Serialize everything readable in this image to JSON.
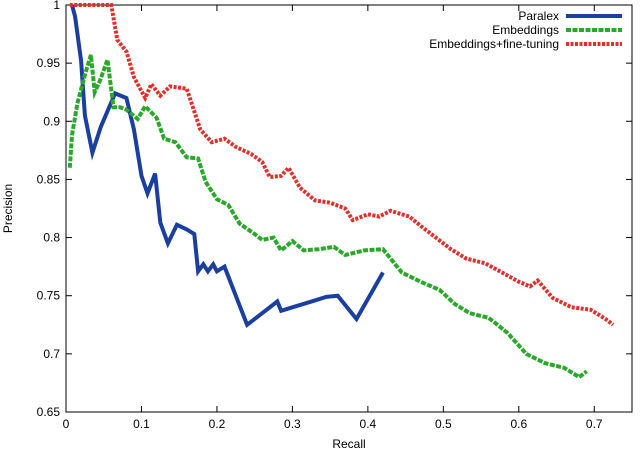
{
  "chart_data": {
    "type": "line",
    "xlabel": "Recall",
    "ylabel": "Precision",
    "xlim": [
      0,
      0.75
    ],
    "ylim": [
      0.65,
      1.0
    ],
    "xticks": [
      "0",
      "0.1",
      "0.2",
      "0.3",
      "0.4",
      "0.5",
      "0.6",
      "0.7"
    ],
    "xtick_values": [
      0,
      0.1,
      0.2,
      0.3,
      0.4,
      0.5,
      0.6,
      0.7
    ],
    "yticks": [
      "0.65",
      "0.7",
      "0.75",
      "0.8",
      "0.85",
      "0.9",
      "0.95",
      "1"
    ],
    "ytick_values": [
      0.65,
      0.7,
      0.75,
      0.8,
      0.85,
      0.9,
      0.95,
      1.0
    ],
    "legend_position": "top-right",
    "grid": false,
    "series": [
      {
        "name": "Paralex",
        "color": "#1a3f9e",
        "style": "solid",
        "points": [
          [
            0.008,
            1.0
          ],
          [
            0.012,
            0.99
          ],
          [
            0.02,
            0.952
          ],
          [
            0.025,
            0.905
          ],
          [
            0.035,
            0.873
          ],
          [
            0.046,
            0.895
          ],
          [
            0.065,
            0.924
          ],
          [
            0.08,
            0.92
          ],
          [
            0.09,
            0.893
          ],
          [
            0.1,
            0.853
          ],
          [
            0.108,
            0.838
          ],
          [
            0.118,
            0.855
          ],
          [
            0.125,
            0.813
          ],
          [
            0.135,
            0.795
          ],
          [
            0.147,
            0.811
          ],
          [
            0.16,
            0.807
          ],
          [
            0.17,
            0.803
          ],
          [
            0.175,
            0.771
          ],
          [
            0.182,
            0.777
          ],
          [
            0.188,
            0.771
          ],
          [
            0.195,
            0.777
          ],
          [
            0.2,
            0.771
          ],
          [
            0.21,
            0.775
          ],
          [
            0.24,
            0.725
          ],
          [
            0.26,
            0.735
          ],
          [
            0.28,
            0.745
          ],
          [
            0.285,
            0.737
          ],
          [
            0.3,
            0.74
          ],
          [
            0.33,
            0.746
          ],
          [
            0.345,
            0.749
          ],
          [
            0.36,
            0.75
          ],
          [
            0.385,
            0.73
          ],
          [
            0.42,
            0.77
          ]
        ]
      },
      {
        "name": "Embeddings",
        "color": "#2aa82a",
        "style": "dashed",
        "points": [
          [
            0.005,
            0.86
          ],
          [
            0.008,
            0.888
          ],
          [
            0.015,
            0.915
          ],
          [
            0.025,
            0.94
          ],
          [
            0.033,
            0.957
          ],
          [
            0.038,
            0.925
          ],
          [
            0.045,
            0.935
          ],
          [
            0.055,
            0.953
          ],
          [
            0.063,
            0.912
          ],
          [
            0.072,
            0.912
          ],
          [
            0.08,
            0.91
          ],
          [
            0.095,
            0.902
          ],
          [
            0.105,
            0.913
          ],
          [
            0.12,
            0.903
          ],
          [
            0.13,
            0.885
          ],
          [
            0.145,
            0.882
          ],
          [
            0.16,
            0.869
          ],
          [
            0.175,
            0.868
          ],
          [
            0.185,
            0.848
          ],
          [
            0.2,
            0.833
          ],
          [
            0.215,
            0.828
          ],
          [
            0.23,
            0.812
          ],
          [
            0.25,
            0.803
          ],
          [
            0.26,
            0.798
          ],
          [
            0.275,
            0.8
          ],
          [
            0.285,
            0.789
          ],
          [
            0.3,
            0.797
          ],
          [
            0.315,
            0.789
          ],
          [
            0.335,
            0.79
          ],
          [
            0.355,
            0.792
          ],
          [
            0.37,
            0.785
          ],
          [
            0.395,
            0.789
          ],
          [
            0.42,
            0.79
          ],
          [
            0.445,
            0.77
          ],
          [
            0.47,
            0.762
          ],
          [
            0.495,
            0.755
          ],
          [
            0.515,
            0.743
          ],
          [
            0.535,
            0.735
          ],
          [
            0.56,
            0.731
          ],
          [
            0.585,
            0.718
          ],
          [
            0.61,
            0.7
          ],
          [
            0.635,
            0.692
          ],
          [
            0.66,
            0.688
          ],
          [
            0.68,
            0.68
          ],
          [
            0.69,
            0.685
          ]
        ]
      },
      {
        "name": "Embeddings+fine-tuning",
        "color": "#e0302a",
        "style": "dotted",
        "points": [
          [
            0.005,
            1.0
          ],
          [
            0.06,
            1.0
          ],
          [
            0.068,
            0.97
          ],
          [
            0.08,
            0.96
          ],
          [
            0.09,
            0.938
          ],
          [
            0.105,
            0.92
          ],
          [
            0.113,
            0.932
          ],
          [
            0.125,
            0.922
          ],
          [
            0.138,
            0.93
          ],
          [
            0.16,
            0.928
          ],
          [
            0.178,
            0.893
          ],
          [
            0.193,
            0.882
          ],
          [
            0.21,
            0.885
          ],
          [
            0.225,
            0.878
          ],
          [
            0.245,
            0.872
          ],
          [
            0.26,
            0.865
          ],
          [
            0.27,
            0.852
          ],
          [
            0.285,
            0.853
          ],
          [
            0.295,
            0.86
          ],
          [
            0.31,
            0.843
          ],
          [
            0.33,
            0.832
          ],
          [
            0.35,
            0.83
          ],
          [
            0.37,
            0.825
          ],
          [
            0.38,
            0.815
          ],
          [
            0.4,
            0.82
          ],
          [
            0.415,
            0.818
          ],
          [
            0.43,
            0.823
          ],
          [
            0.455,
            0.818
          ],
          [
            0.47,
            0.81
          ],
          [
            0.49,
            0.8
          ],
          [
            0.51,
            0.79
          ],
          [
            0.53,
            0.782
          ],
          [
            0.555,
            0.778
          ],
          [
            0.575,
            0.771
          ],
          [
            0.6,
            0.762
          ],
          [
            0.615,
            0.758
          ],
          [
            0.625,
            0.763
          ],
          [
            0.645,
            0.748
          ],
          [
            0.67,
            0.74
          ],
          [
            0.695,
            0.738
          ],
          [
            0.715,
            0.73
          ],
          [
            0.725,
            0.725
          ]
        ]
      }
    ]
  }
}
